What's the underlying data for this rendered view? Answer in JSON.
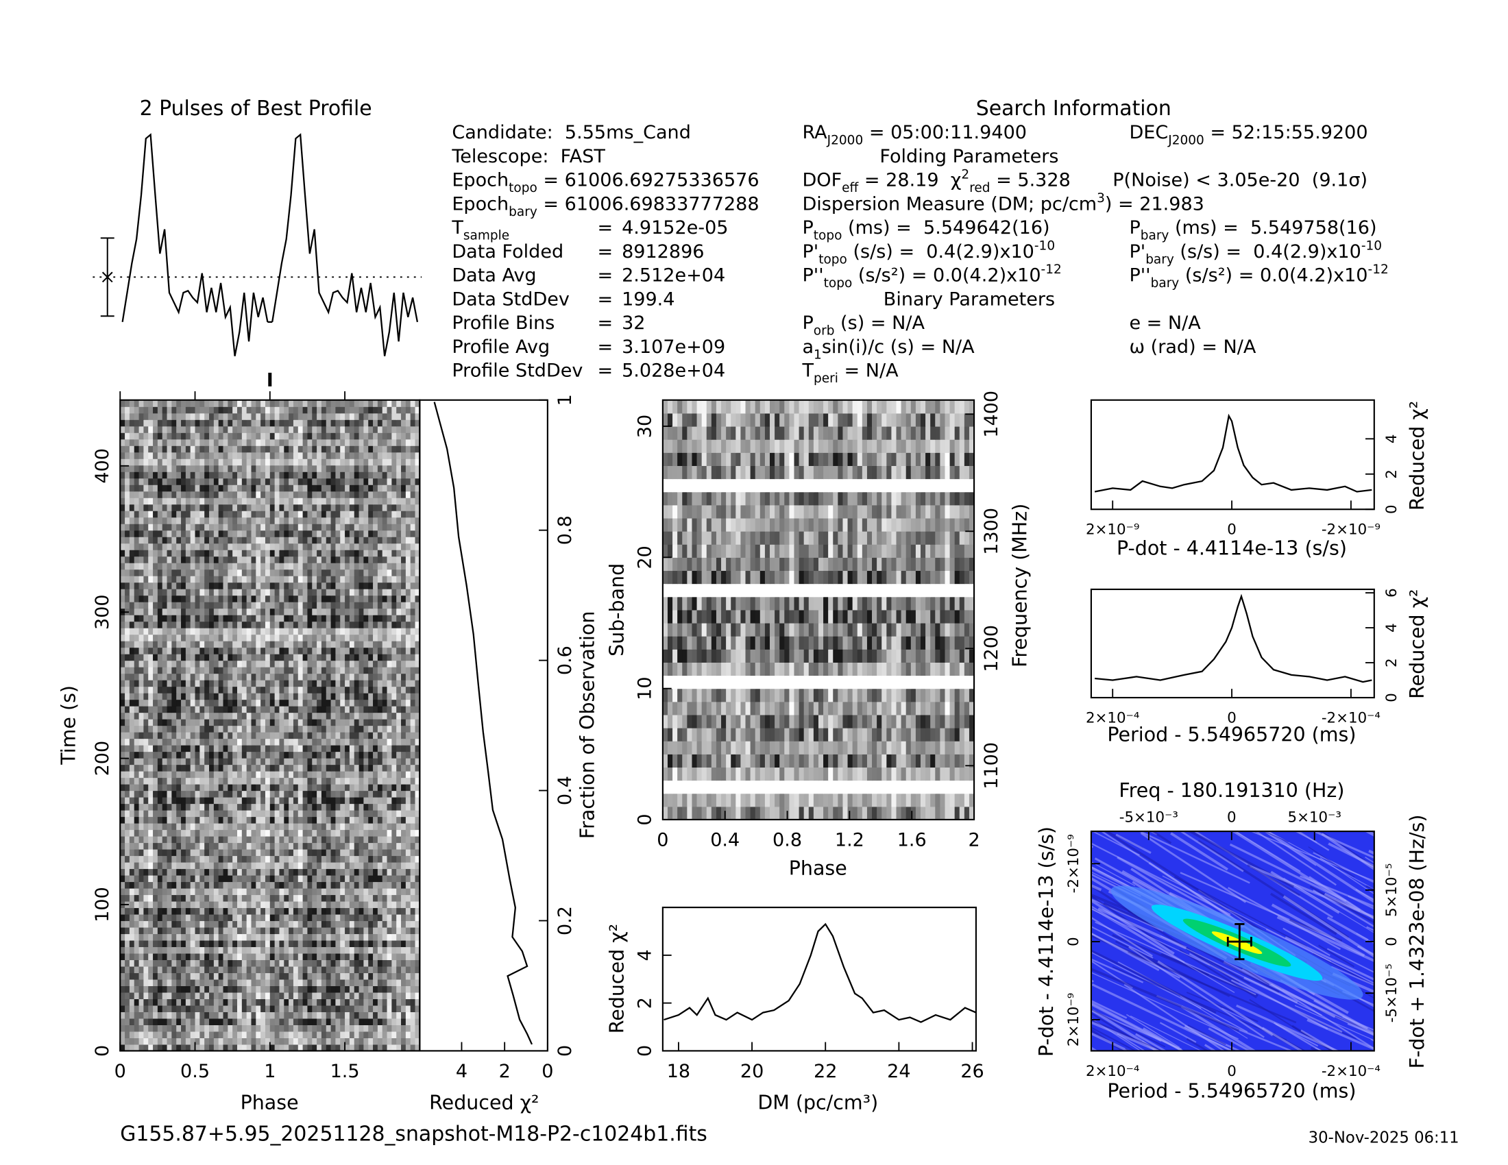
{
  "header": {
    "search_title": "Search Information",
    "filename": "G155.87+5.95_20251128_snapshot-M18-P2-c1024b1.fits",
    "date": "30-Nov-2025 06:11"
  },
  "info_left": [
    [
      [
        "Candidate:  5.55ms_Cand"
      ]
    ],
    [
      [
        "Telescope:  FAST"
      ]
    ],
    [
      [
        "Epoch",
        {
          "sub": "topo"
        },
        " = 61006.69275336576"
      ]
    ],
    [
      [
        "Epoch",
        {
          "sub": "bary"
        },
        " = 61006.69833777288"
      ]
    ],
    [
      [
        "T",
        {
          "sub": "sample"
        }
      ],
      [
        "="
      ],
      [
        "4.9152e-05"
      ]
    ],
    [
      [
        "Data Folded"
      ],
      [
        "="
      ],
      [
        "8912896"
      ]
    ],
    [
      [
        "Data Avg"
      ],
      [
        "="
      ],
      [
        "2.512e+04"
      ]
    ],
    [
      [
        "Data StdDev"
      ],
      [
        "="
      ],
      [
        "199.4"
      ]
    ],
    [
      [
        "Profile Bins"
      ],
      [
        "="
      ],
      [
        "32"
      ]
    ],
    [
      [
        "Profile Avg"
      ],
      [
        "="
      ],
      [
        "3.107e+09"
      ]
    ],
    [
      [
        "Profile StdDev"
      ],
      [
        "="
      ],
      [
        "5.028e+04"
      ]
    ]
  ],
  "info_right": [
    [
      [
        "RA",
        {
          "sub": "J2000"
        },
        " = 05:00:11.9400"
      ],
      [
        "DEC",
        {
          "sub": "J2000"
        },
        " = 52:15:55.9200"
      ]
    ],
    [
      [
        "Folding Parameters"
      ]
    ],
    [
      [
        "DOF",
        {
          "sub": "eff"
        },
        " = 28.19  χ",
        {
          "sup": "2"
        },
        {
          "sub": "red"
        },
        " = 5.328"
      ],
      [
        "P(Noise) < 3.05e-20  (9.1σ)"
      ]
    ],
    [
      [
        "Dispersion Measure (DM; pc/cm",
        {
          "sup": "3"
        },
        ") = 21.983"
      ]
    ],
    [
      [
        "P",
        {
          "sub": "topo"
        },
        " (ms) =  5.549642(16)"
      ],
      [
        "P",
        {
          "sub": "bary"
        },
        " (ms) =  5.549758(16)"
      ]
    ],
    [
      [
        "P'",
        {
          "sub": "topo"
        },
        " (s/s) =  0.4(2.9)x10",
        {
          "sup": "-10"
        }
      ],
      [
        "P'",
        {
          "sub": "bary"
        },
        " (s/s) =  0.4(2.9)x10",
        {
          "sup": "-10"
        }
      ]
    ],
    [
      [
        "P''",
        {
          "sub": "topo"
        },
        " (s/s²) = 0.0(4.2)x10",
        {
          "sup": "-12"
        }
      ],
      [
        "P''",
        {
          "sub": "bary"
        },
        " (s/s²) = 0.0(4.2)x10",
        {
          "sup": "-12"
        }
      ]
    ],
    [
      [
        "Binary Parameters"
      ]
    ],
    [
      [
        "P",
        {
          "sub": "orb"
        },
        " (s) = N/A"
      ],
      [
        "e = N/A"
      ]
    ],
    [
      [
        "a",
        {
          "sub": "1"
        },
        "sin(i)/c (s) = N/A"
      ],
      [
        "ω (rad) = N/A"
      ]
    ],
    [
      [
        "T",
        {
          "sub": "peri"
        },
        " = N/A"
      ]
    ]
  ],
  "chart_data": [
    {
      "type": "profile",
      "title": "2 Pulses of Best Profile",
      "values": [
        35,
        65,
        95,
        120,
        165,
        223,
        227,
        165,
        105,
        130,
        65,
        55,
        45,
        65,
        67,
        60,
        55,
        85,
        45,
        70,
        45,
        75,
        40,
        50,
        0,
        25,
        65,
        15,
        65,
        40,
        60,
        35
      ],
      "mean": 81,
      "error": 40,
      "ylim": [
        0,
        230
      ]
    },
    {
      "type": "greyscale",
      "xlabel": "Phase",
      "ylabel": "Time (s)",
      "xlim": [
        0,
        2
      ],
      "xticks": [
        0,
        0.5,
        1,
        1.5
      ],
      "ylim": [
        0,
        445
      ],
      "yticks": [
        0,
        100,
        200,
        300,
        400
      ],
      "marker_x": 1
    },
    {
      "type": "line",
      "orientation": "horizontal",
      "xlabel": "Reduced χ²",
      "y2label": "Fraction of Observation",
      "xlim": [
        5.95,
        0
      ],
      "xticks": [
        4,
        2,
        0
      ],
      "ylim": [
        0,
        1
      ],
      "yticks": [
        0,
        0.2,
        0.4,
        0.6,
        0.8,
        1
      ],
      "y": [
        0.01,
        0.026,
        0.048,
        0.085,
        0.115,
        0.13,
        0.153,
        0.175,
        0.22,
        0.265,
        0.325,
        0.37,
        0.43,
        0.49,
        0.565,
        0.64,
        0.715,
        0.79,
        0.865,
        0.925,
        0.97,
        0.997
      ],
      "values": [
        0.73,
        0.95,
        1.3,
        1.6,
        1.86,
        0.95,
        1.18,
        1.64,
        1.5,
        1.77,
        2.1,
        2.55,
        2.77,
        3.0,
        3.23,
        3.45,
        3.77,
        4.14,
        4.36,
        4.68,
        5.05,
        5.27
      ]
    },
    {
      "type": "greyscale",
      "xlabel": "Phase",
      "ylabel": "Sub-band",
      "y2label": "Frequency (MHz)",
      "xlim": [
        0,
        2
      ],
      "xticks": [
        0,
        0.4,
        0.8,
        1.2,
        1.6,
        2
      ],
      "ylim": [
        0,
        32
      ],
      "yticks": [
        0,
        10,
        20,
        30
      ],
      "y2lim": [
        1054,
        1412
      ],
      "y2ticks": [
        1100,
        1200,
        1300,
        1400
      ],
      "masked_rows": [
        2,
        10,
        17,
        25
      ]
    },
    {
      "type": "line",
      "xlabel": "DM (pc/cm³)",
      "ylabel": "Reduced χ²",
      "xlim": [
        17.57,
        26.1
      ],
      "xticks": [
        18,
        20,
        22,
        24,
        26
      ],
      "ylim": [
        0,
        6
      ],
      "yticks": [
        0,
        2,
        4
      ],
      "x": [
        17.6,
        18.0,
        18.3,
        18.5,
        18.8,
        19.0,
        19.3,
        19.6,
        20.0,
        20.3,
        20.6,
        21.0,
        21.3,
        21.6,
        21.8,
        22.0,
        22.2,
        22.5,
        22.8,
        23.0,
        23.3,
        23.6,
        24.0,
        24.3,
        24.6,
        25.0,
        25.4,
        25.8,
        26.1
      ],
      "values": [
        1.3,
        1.5,
        1.8,
        1.5,
        2.2,
        1.5,
        1.3,
        1.6,
        1.3,
        1.6,
        1.7,
        2.1,
        2.8,
        4.0,
        5.0,
        5.3,
        4.8,
        3.5,
        2.4,
        2.2,
        1.6,
        1.7,
        1.3,
        1.4,
        1.2,
        1.5,
        1.3,
        1.8,
        1.6
      ]
    },
    {
      "type": "line",
      "xlabel": "P-dot - 4.4114e-13 (s/s)",
      "y2label": "Reduced χ²",
      "xlim": [
        2.36e-09,
        -2.39e-09
      ],
      "xticks": [
        {
          "value": 2e-09,
          "label": "2×10⁻⁹"
        },
        0,
        {
          "value": -2e-09,
          "label": "-2×10⁻⁹"
        }
      ],
      "ylim": [
        0,
        6.2
      ],
      "yticks": [
        0,
        2,
        4
      ],
      "x": [
        2.3e-09,
        2e-09,
        1.7e-09,
        1.5e-09,
        1.2e-09,
        1e-09,
        8e-10,
        5e-10,
        3e-10,
        1.5e-10,
        5e-11,
        0,
        -1e-10,
        -2e-10,
        -3.5e-10,
        -5e-10,
        -7e-10,
        -1e-09,
        -1.3e-09,
        -1.6e-09,
        -1.9e-09,
        -2.1e-09,
        -2.35e-09
      ],
      "values": [
        1.0,
        1.2,
        1.1,
        1.6,
        1.3,
        1.2,
        1.4,
        1.6,
        2.2,
        3.5,
        5.3,
        5.0,
        3.5,
        2.5,
        1.8,
        1.4,
        1.5,
        1.1,
        1.2,
        1.1,
        1.3,
        1.0,
        1.1
      ]
    },
    {
      "type": "line",
      "xlabel": "Period - 5.54965720 (ms)",
      "y2label": "Reduced χ²",
      "xlim": [
        0.000236,
        -0.000239
      ],
      "xticks": [
        {
          "value": 0.0002,
          "label": "2×10⁻⁴"
        },
        0,
        {
          "value": -0.0002,
          "label": "-2×10⁻⁴"
        }
      ],
      "ylim": [
        0,
        6.2
      ],
      "yticks": [
        0,
        2,
        4,
        6
      ],
      "x": [
        0.00023,
        0.0002,
        0.00016,
        0.00012,
        8e-05,
        5e-05,
        3e-05,
        1e-05,
        0,
        -1e-05,
        -1.6e-05,
        -2.5e-05,
        -3.5e-05,
        -5e-05,
        -7e-05,
        -0.0001,
        -0.00013,
        -0.00016,
        -0.00019,
        -0.00022,
        -0.000235
      ],
      "values": [
        1.1,
        1.0,
        1.2,
        1.0,
        1.3,
        1.5,
        2.2,
        3.2,
        4.0,
        5.2,
        5.8,
        4.8,
        3.5,
        2.3,
        1.6,
        1.3,
        1.2,
        1.0,
        1.2,
        0.9,
        1.0
      ]
    },
    {
      "type": "colormap",
      "title": "Freq - 180.191310 (Hz)",
      "xlabel": "Period - 5.54965720 (ms)",
      "ylabel": "P-dot - 4.4114e-13 (s/s)",
      "y2label": "F-dot + 1.4323e-08 (Hz/s)",
      "xlim": [
        0.000236,
        -0.000239
      ],
      "xticks": [
        {
          "value": 0.0002,
          "label": "2×10⁻⁴"
        },
        0,
        {
          "value": -0.0002,
          "label": "-2×10⁻⁴"
        }
      ],
      "x2lim": [
        -0.00847,
        0.0086
      ],
      "x2ticks": [
        {
          "value": -0.005,
          "label": "-5×10⁻³"
        },
        0,
        {
          "value": 0.005,
          "label": "5×10⁻³"
        }
      ],
      "ylim": [
        2.8e-09,
        -2.83e-09
      ],
      "yticks": [
        {
          "value": 2e-09,
          "label": "2×10⁻⁹"
        },
        0,
        {
          "value": -2e-09,
          "label": "-2×10⁻⁹"
        }
      ],
      "y2lim": [
        -0.000106,
        0.000107
      ],
      "y2ticks": [
        {
          "value": -5e-05,
          "label": "-5×10⁻⁵"
        },
        0,
        {
          "value": 5e-05,
          "label": "5×10⁻⁵"
        }
      ],
      "best": [
        -1.3e-05,
        0
      ],
      "colors": [
        "#2834ee",
        "#a8a8ff",
        "#1a1aa8",
        "#4f8cff",
        "#00d4ff",
        "#00d070",
        "#ffff00"
      ]
    }
  ]
}
